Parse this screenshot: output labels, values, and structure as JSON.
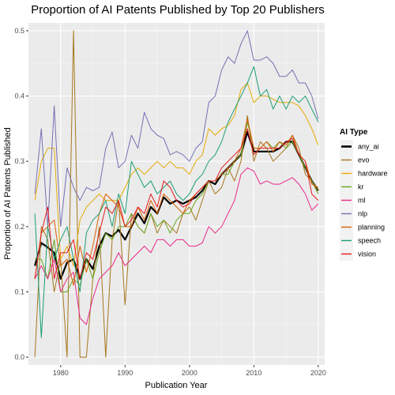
{
  "chart_data": {
    "type": "line",
    "title": "Proportion of AI Patents Published by Top 20 Publishers",
    "xlabel": "Publication Year",
    "ylabel": "Proportion of AI Patents Published",
    "xlim": [
      1975,
      2021
    ],
    "ylim": [
      -0.012,
      0.512
    ],
    "xticks": [
      1980,
      1990,
      2000,
      2010,
      2020
    ],
    "yticks": [
      0.0,
      0.1,
      0.2,
      0.3,
      0.4,
      0.5
    ],
    "ytick_labels": [
      "0.0",
      "0.1",
      "0.2",
      "0.3",
      "0.4",
      "0.5"
    ],
    "grid": true,
    "legend_title": "AI Type",
    "legend_position": "right",
    "x": [
      1976,
      1977,
      1978,
      1979,
      1980,
      1981,
      1982,
      1983,
      1984,
      1985,
      1986,
      1987,
      1988,
      1989,
      1990,
      1991,
      1992,
      1993,
      1994,
      1995,
      1996,
      1997,
      1998,
      1999,
      2000,
      2001,
      2002,
      2003,
      2004,
      2005,
      2006,
      2007,
      2008,
      2009,
      2010,
      2011,
      2012,
      2013,
      2014,
      2015,
      2016,
      2017,
      2018,
      2019,
      2020
    ],
    "series": [
      {
        "name": "any_ai",
        "color": "#000000",
        "width": 2.2,
        "values": [
          0.14,
          0.175,
          0.168,
          0.16,
          0.12,
          0.145,
          0.15,
          0.12,
          0.15,
          0.135,
          0.17,
          0.19,
          0.185,
          0.195,
          0.18,
          0.2,
          0.22,
          0.205,
          0.23,
          0.22,
          0.245,
          0.235,
          0.24,
          0.235,
          0.24,
          0.245,
          0.255,
          0.27,
          0.265,
          0.28,
          0.29,
          0.3,
          0.31,
          0.345,
          0.315,
          0.315,
          0.315,
          0.315,
          0.32,
          0.33,
          0.33,
          0.31,
          0.29,
          0.27,
          0.255
        ]
      },
      {
        "name": "evo",
        "color": "#a6761d",
        "width": 1,
        "values": [
          0.0,
          0.2,
          0.18,
          0.1,
          0.15,
          0.0,
          0.5,
          0.0,
          0.0,
          0.12,
          0.2,
          0.0,
          0.18,
          0.24,
          0.08,
          0.22,
          0.2,
          0.19,
          0.22,
          0.19,
          0.21,
          0.2,
          0.19,
          0.22,
          0.23,
          0.21,
          0.24,
          0.27,
          0.25,
          0.26,
          0.29,
          0.27,
          0.3,
          0.37,
          0.3,
          0.33,
          0.32,
          0.3,
          0.31,
          0.32,
          0.34,
          0.32,
          0.28,
          0.27,
          0.255
        ]
      },
      {
        "name": "hardware",
        "color": "#e6ab02",
        "width": 1,
        "values": [
          0.24,
          0.3,
          0.32,
          0.32,
          0.15,
          0.17,
          0.14,
          0.21,
          0.23,
          0.24,
          0.25,
          0.24,
          0.24,
          0.24,
          0.26,
          0.28,
          0.29,
          0.28,
          0.29,
          0.3,
          0.29,
          0.3,
          0.29,
          0.29,
          0.28,
          0.3,
          0.31,
          0.35,
          0.34,
          0.35,
          0.355,
          0.37,
          0.41,
          0.42,
          0.39,
          0.4,
          0.4,
          0.395,
          0.39,
          0.39,
          0.39,
          0.385,
          0.37,
          0.35,
          0.325
        ]
      },
      {
        "name": "kr",
        "color": "#66a61e",
        "width": 1,
        "values": [
          0.15,
          0.15,
          0.12,
          0.18,
          0.1,
          0.1,
          0.12,
          0.11,
          0.15,
          0.12,
          0.16,
          0.19,
          0.18,
          0.2,
          0.2,
          0.22,
          0.2,
          0.19,
          0.22,
          0.2,
          0.21,
          0.19,
          0.21,
          0.22,
          0.22,
          0.24,
          0.25,
          0.27,
          0.27,
          0.28,
          0.28,
          0.3,
          0.31,
          0.36,
          0.32,
          0.32,
          0.33,
          0.32,
          0.33,
          0.32,
          0.33,
          0.31,
          0.29,
          0.27,
          0.25
        ]
      },
      {
        "name": "ml",
        "color": "#e7298a",
        "width": 1,
        "values": [
          0.12,
          0.14,
          0.12,
          0.15,
          0.1,
          0.12,
          0.13,
          0.06,
          0.05,
          0.09,
          0.12,
          0.13,
          0.14,
          0.16,
          0.14,
          0.15,
          0.16,
          0.17,
          0.16,
          0.18,
          0.18,
          0.17,
          0.18,
          0.18,
          0.17,
          0.17,
          0.175,
          0.2,
          0.19,
          0.2,
          0.22,
          0.24,
          0.28,
          0.29,
          0.285,
          0.265,
          0.27,
          0.265,
          0.265,
          0.27,
          0.275,
          0.265,
          0.25,
          0.225,
          0.235
        ]
      },
      {
        "name": "nlp",
        "color": "#7570b3",
        "width": 1,
        "values": [
          0.25,
          0.35,
          0.2,
          0.385,
          0.2,
          0.29,
          0.26,
          0.24,
          0.26,
          0.255,
          0.26,
          0.32,
          0.345,
          0.29,
          0.3,
          0.34,
          0.32,
          0.375,
          0.35,
          0.34,
          0.335,
          0.31,
          0.315,
          0.31,
          0.3,
          0.32,
          0.33,
          0.39,
          0.4,
          0.44,
          0.46,
          0.45,
          0.48,
          0.5,
          0.455,
          0.455,
          0.46,
          0.45,
          0.43,
          0.43,
          0.44,
          0.42,
          0.42,
          0.4,
          0.365
        ]
      },
      {
        "name": "planning",
        "color": "#d95f02",
        "width": 1,
        "values": [
          0.12,
          0.19,
          0.2,
          0.21,
          0.14,
          0.15,
          0.11,
          0.17,
          0.13,
          0.17,
          0.22,
          0.25,
          0.24,
          0.23,
          0.2,
          0.2,
          0.23,
          0.21,
          0.24,
          0.22,
          0.25,
          0.24,
          0.23,
          0.22,
          0.24,
          0.25,
          0.26,
          0.27,
          0.27,
          0.28,
          0.29,
          0.3,
          0.32,
          0.365,
          0.32,
          0.32,
          0.33,
          0.315,
          0.33,
          0.325,
          0.34,
          0.31,
          0.3,
          0.265,
          0.26
        ]
      },
      {
        "name": "speech",
        "color": "#1b9e77",
        "width": 1,
        "values": [
          0.22,
          0.03,
          0.2,
          0.15,
          0.18,
          0.2,
          0.15,
          0.1,
          0.19,
          0.21,
          0.22,
          0.24,
          0.2,
          0.25,
          0.22,
          0.3,
          0.28,
          0.26,
          0.27,
          0.25,
          0.26,
          0.27,
          0.25,
          0.24,
          0.25,
          0.27,
          0.28,
          0.3,
          0.31,
          0.33,
          0.36,
          0.38,
          0.4,
          0.42,
          0.445,
          0.4,
          0.41,
          0.38,
          0.4,
          0.38,
          0.4,
          0.39,
          0.4,
          0.38,
          0.36
        ]
      },
      {
        "name": "vision",
        "color": "#e41a1c",
        "width": 1,
        "values": [
          0.12,
          0.19,
          0.23,
          0.12,
          0.16,
          0.16,
          0.18,
          0.12,
          0.16,
          0.15,
          0.19,
          0.23,
          0.22,
          0.24,
          0.2,
          0.21,
          0.23,
          0.22,
          0.25,
          0.23,
          0.27,
          0.26,
          0.24,
          0.23,
          0.235,
          0.25,
          0.26,
          0.27,
          0.27,
          0.29,
          0.3,
          0.31,
          0.32,
          0.35,
          0.31,
          0.32,
          0.32,
          0.32,
          0.32,
          0.33,
          0.335,
          0.31,
          0.3,
          0.25,
          0.24
        ]
      }
    ]
  }
}
